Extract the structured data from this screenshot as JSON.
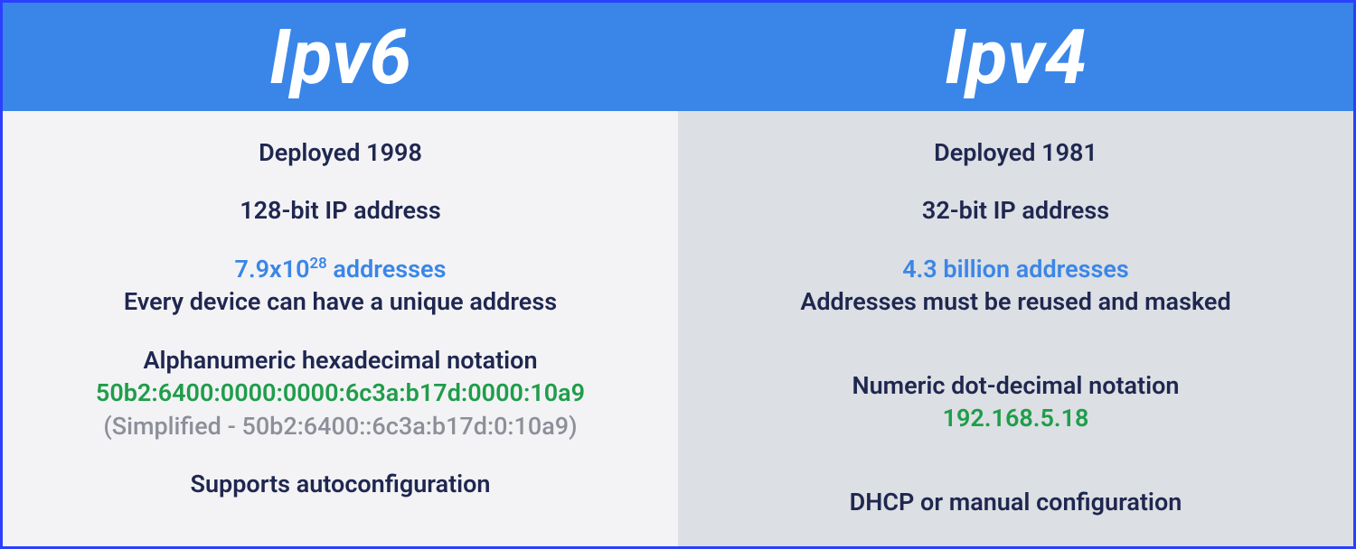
{
  "colors": {
    "header_bg": "#3a86e8",
    "border": "#2a3fff",
    "left_body_bg": "#f3f3f5",
    "right_body_bg": "#dcdfe3",
    "text_dark": "#1f2750",
    "text_blue": "#3a86e8",
    "text_green": "#1f9d4a",
    "text_muted": "#8c8f99",
    "white": "#ffffff"
  },
  "typography": {
    "header_fontsize": 84,
    "body_fontsize": 27,
    "header_style": "italic bold"
  },
  "left": {
    "title": "Ipv6",
    "deployed": "Deployed 1998",
    "bits": "128-bit IP address",
    "addr_count_pre": "7.9x10",
    "addr_count_exp": "28",
    "addr_count_post": " addresses",
    "addr_note": "Every device can have a unique address",
    "notation_label": "Alphanumeric hexadecimal notation",
    "example": "50b2:6400:0000:0000:6c3a:b17d:0000:10a9",
    "simplified": "(Simplified - 50b2:6400::6c3a:b17d:0:10a9)",
    "config": "Supports autoconfiguration"
  },
  "right": {
    "title": "Ipv4",
    "deployed": "Deployed 1981",
    "bits": "32-bit IP address",
    "addr_count": "4.3 billion addresses",
    "addr_note": "Addresses must be reused and masked",
    "notation_label": "Numeric dot-decimal notation",
    "example": "192.168.5.18",
    "config": "DHCP or manual configuration"
  }
}
